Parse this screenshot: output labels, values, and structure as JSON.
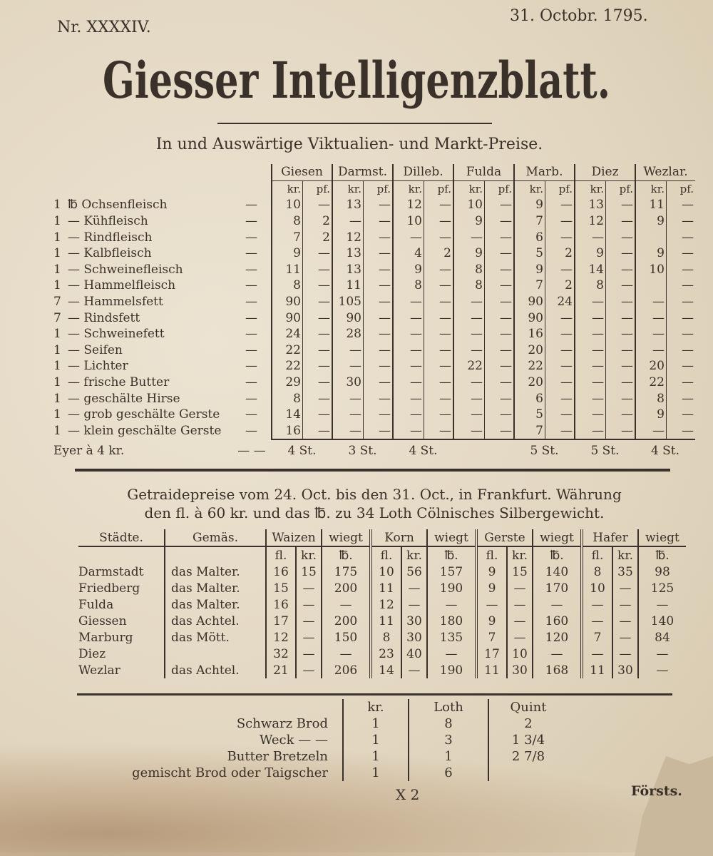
{
  "header": {
    "number": "Nr. XXXXIV.",
    "date": "31. Octobr. 1795.",
    "title": "Giesser Intelligenzblatt.",
    "subtitle": "In und Auswärtige Viktualien- und Markt-Preise."
  },
  "market": {
    "cities": [
      "Giesen",
      "Darmst.",
      "Dilleb.",
      "Fulda",
      "Marb.",
      "Diez",
      "Wezlar."
    ],
    "unit_kr": "kr.",
    "unit_pf": "pf.",
    "weight_unit": "℔",
    "rows": [
      {
        "qty": "1",
        "item": "Ochsenfleisch",
        "prices": [
          [
            "10",
            "—"
          ],
          [
            "13",
            "—"
          ],
          [
            "12",
            "—"
          ],
          [
            "10",
            "—"
          ],
          [
            "9",
            "—"
          ],
          [
            "13",
            "—"
          ],
          [
            "11",
            "—"
          ]
        ]
      },
      {
        "qty": "1",
        "item": "Kühfleisch",
        "prices": [
          [
            "8",
            "2"
          ],
          [
            "—",
            "—"
          ],
          [
            "10",
            "—"
          ],
          [
            "9",
            "—"
          ],
          [
            "7",
            "—"
          ],
          [
            "12",
            "—"
          ],
          [
            "9",
            "—"
          ]
        ]
      },
      {
        "qty": "1",
        "item": "Rindfleisch",
        "prices": [
          [
            "7",
            "2"
          ],
          [
            "12",
            "—"
          ],
          [
            "—",
            "—"
          ],
          [
            "—",
            "—"
          ],
          [
            "6",
            "—"
          ],
          [
            "—",
            "—"
          ],
          [
            "",
            "—"
          ]
        ]
      },
      {
        "qty": "1",
        "item": "Kalbfleisch",
        "prices": [
          [
            "9",
            "—"
          ],
          [
            "13",
            "—"
          ],
          [
            "4",
            "2"
          ],
          [
            "9",
            "—"
          ],
          [
            "5",
            "2"
          ],
          [
            "9",
            "—"
          ],
          [
            "9",
            "—"
          ]
        ]
      },
      {
        "qty": "1",
        "item": "Schweinefleisch",
        "prices": [
          [
            "11",
            "—"
          ],
          [
            "13",
            "—"
          ],
          [
            "9",
            "—"
          ],
          [
            "8",
            "—"
          ],
          [
            "9",
            "—"
          ],
          [
            "14",
            "—"
          ],
          [
            "10",
            "—"
          ]
        ]
      },
      {
        "qty": "1",
        "item": "Hammelfleisch",
        "prices": [
          [
            "8",
            "—"
          ],
          [
            "11",
            "—"
          ],
          [
            "8",
            "—"
          ],
          [
            "8",
            "—"
          ],
          [
            "7",
            "2"
          ],
          [
            "8",
            "—"
          ],
          [
            "",
            "—"
          ]
        ]
      },
      {
        "qty": "7",
        "item": "Hammelsfett",
        "prices": [
          [
            "90",
            "—"
          ],
          [
            "105",
            "—"
          ],
          [
            "—",
            "—"
          ],
          [
            "—",
            "—"
          ],
          [
            "90",
            "24"
          ],
          [
            "—",
            "—"
          ],
          [
            "—",
            "—"
          ]
        ]
      },
      {
        "qty": "7",
        "item": "Rindsfett",
        "prices": [
          [
            "90",
            "—"
          ],
          [
            "90",
            "—"
          ],
          [
            "—",
            "—"
          ],
          [
            "—",
            "—"
          ],
          [
            "90",
            "—"
          ],
          [
            "—",
            "—"
          ],
          [
            "—",
            "—"
          ]
        ]
      },
      {
        "qty": "1",
        "item": "Schweinefett",
        "prices": [
          [
            "24",
            "—"
          ],
          [
            "28",
            "—"
          ],
          [
            "—",
            "—"
          ],
          [
            "—",
            "—"
          ],
          [
            "16",
            "—"
          ],
          [
            "—",
            "—"
          ],
          [
            "—",
            "—"
          ]
        ]
      },
      {
        "qty": "1",
        "item": "Seifen",
        "prices": [
          [
            "22",
            "—"
          ],
          [
            "—",
            "—"
          ],
          [
            "—",
            "—"
          ],
          [
            "—",
            "—"
          ],
          [
            "20",
            "—"
          ],
          [
            "—",
            "—"
          ],
          [
            "—",
            "—"
          ]
        ]
      },
      {
        "qty": "1",
        "item": "Lichter",
        "prices": [
          [
            "22",
            "—"
          ],
          [
            "—",
            "—"
          ],
          [
            "—",
            "—"
          ],
          [
            "22",
            "—"
          ],
          [
            "22",
            "—"
          ],
          [
            "—",
            "—"
          ],
          [
            "20",
            "—"
          ]
        ]
      },
      {
        "qty": "1",
        "item": "frische Butter",
        "prices": [
          [
            "29",
            "—"
          ],
          [
            "30",
            "—"
          ],
          [
            "—",
            "—"
          ],
          [
            "—",
            "—"
          ],
          [
            "20",
            "—"
          ],
          [
            "—",
            "—"
          ],
          [
            "22",
            "—"
          ]
        ]
      },
      {
        "qty": "1",
        "item": "geschälte Hirse",
        "prices": [
          [
            "8",
            "—"
          ],
          [
            "—",
            "—"
          ],
          [
            "—",
            "—"
          ],
          [
            "—",
            "—"
          ],
          [
            "6",
            "—"
          ],
          [
            "—",
            "—"
          ],
          [
            "8",
            "—"
          ]
        ]
      },
      {
        "qty": "1",
        "item": "grob geschälte Gerste",
        "prices": [
          [
            "14",
            "—"
          ],
          [
            "—",
            "—"
          ],
          [
            "—",
            "—"
          ],
          [
            "—",
            "—"
          ],
          [
            "5",
            "—"
          ],
          [
            "—",
            "—"
          ],
          [
            "9",
            "—"
          ]
        ]
      },
      {
        "qty": "1",
        "item": "klein geschälte Gerste",
        "prices": [
          [
            "16",
            "—"
          ],
          [
            "—",
            "—"
          ],
          [
            "—",
            "—"
          ],
          [
            "—",
            "—"
          ],
          [
            "7",
            "—"
          ],
          [
            "—",
            "—"
          ],
          [
            "—",
            "—"
          ]
        ]
      }
    ],
    "eggs": {
      "label": "Eyer à 4 kr.",
      "values": [
        "4 St.",
        "3 St.",
        "4 St.",
        "",
        "5 St.",
        "5 St.",
        "4 St."
      ]
    }
  },
  "grain": {
    "heading_line1": "Getraidepreise vom 24. Oct. bis den 31. Oct., in Frankfurt. Währung",
    "heading_line2": "den fl. à 60 kr. und das ℔. zu 34 Loth Cölnisches Silbergewicht.",
    "col_city": "Städte.",
    "col_measure": "Gemäs.",
    "grains": [
      "Waizen",
      "Korn",
      "Gerste",
      "Hafer"
    ],
    "col_weight": "wiegt",
    "unit_fl": "fl.",
    "unit_kr": "kr.",
    "unit_lb": "℔.",
    "rows": [
      {
        "city": "Darmstadt",
        "measure": "das Malter.",
        "values": [
          "16",
          "15",
          "175",
          "10",
          "56",
          "157",
          "9",
          "15",
          "140",
          "8",
          "35",
          "98"
        ]
      },
      {
        "city": "Friedberg",
        "measure": "das Malter.",
        "values": [
          "15",
          "—",
          "200",
          "11",
          "—",
          "190",
          "9",
          "—",
          "170",
          "10",
          "—",
          "125"
        ]
      },
      {
        "city": "Fulda",
        "measure": "das Malter.",
        "values": [
          "16",
          "—",
          "—",
          "12",
          "—",
          "—",
          "—",
          "—",
          "—",
          "—",
          "—",
          "—"
        ]
      },
      {
        "city": "Giessen",
        "measure": "das Achtel.",
        "values": [
          "17",
          "—",
          "200",
          "11",
          "30",
          "180",
          "9",
          "—",
          "160",
          "—",
          "—",
          "140"
        ]
      },
      {
        "city": "Marburg",
        "measure": "das Mött.",
        "values": [
          "12",
          "—",
          "150",
          "8",
          "30",
          "135",
          "7",
          "—",
          "120",
          "7",
          "—",
          "84"
        ]
      },
      {
        "city": "Diez",
        "measure": "",
        "values": [
          "32",
          "—",
          "—",
          "23",
          "40",
          "—",
          "17",
          "10",
          "—",
          "—",
          "—",
          "—"
        ]
      },
      {
        "city": "Wezlar",
        "measure": "das Achtel.",
        "values": [
          "21",
          "—",
          "206",
          "14",
          "—",
          "190",
          "11",
          "30",
          "168",
          "11",
          "30",
          "—"
        ]
      }
    ]
  },
  "bread": {
    "headers": [
      "kr.",
      "Loth",
      "Quint"
    ],
    "rows": [
      {
        "item": "Schwarz Brod",
        "values": [
          "1",
          "8",
          "2"
        ]
      },
      {
        "item": "Weck — —",
        "values": [
          "1",
          "3",
          "1 3/4"
        ]
      },
      {
        "item": "Butter Bretzeln",
        "values": [
          "1",
          "1",
          "2 7/8"
        ]
      },
      {
        "item": "gemischt Brod oder Taigscher",
        "values": [
          "1",
          "6",
          ""
        ]
      }
    ]
  },
  "footer": {
    "signature": "X 2",
    "catchword": "Försts."
  }
}
